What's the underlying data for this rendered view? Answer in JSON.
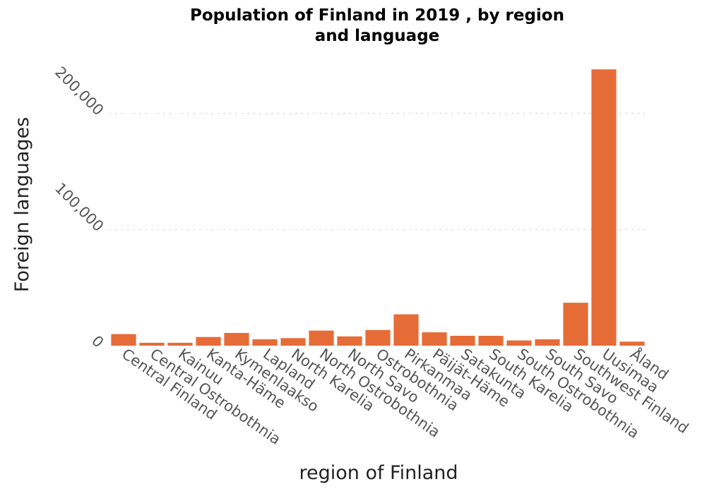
{
  "chart_data": {
    "type": "bar",
    "title_lines": [
      "Population of Finland in 2019 , by region",
      "and language"
    ],
    "xlabel": "region of Finland",
    "ylabel": "Foreign languages",
    "categories": [
      "Central Finland",
      "Central Ostrobothnia",
      "Kainuu",
      "Kanta-Häme",
      "Kymenlaakso",
      "Lapland",
      "North Karelia",
      "North Ostrobothnia",
      "North Savo",
      "Ostrobothnia",
      "Pirkanmaa",
      "Päijät-Häme",
      "Satakunta",
      "South Karelia",
      "South Ostrobothnia",
      "South Savo",
      "Southwest Finland",
      "Uusimaa",
      "Åland"
    ],
    "values": [
      10000,
      2500,
      2500,
      7500,
      11000,
      5500,
      6500,
      13000,
      8000,
      13500,
      27000,
      11500,
      8500,
      8500,
      4500,
      5500,
      37000,
      238000,
      3500
    ],
    "ylim": [
      0,
      240000
    ],
    "yticks": [
      0,
      100000,
      200000
    ],
    "ytick_labels": [
      "0",
      "100,000",
      "200,000"
    ],
    "grid": "horizontal dotted",
    "bar_color": "#e66c37"
  }
}
